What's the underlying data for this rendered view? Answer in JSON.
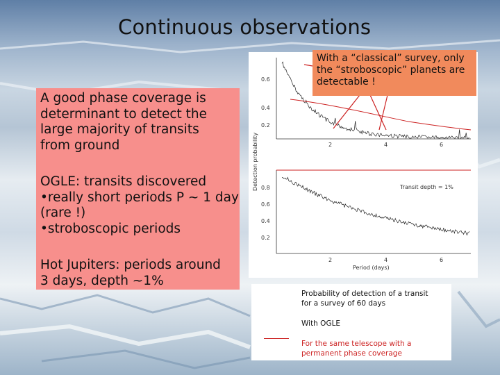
{
  "slide": {
    "title": "Continuous observations",
    "left_box": {
      "para1": [
        "A good phase coverage is",
        "determinant to detect the",
        "large majority of transits",
        "from ground"
      ],
      "para2": [
        "OGLE: transits discovered",
        "•really short periods P ~ 1 day",
        "(rare !)",
        "•stroboscopic periods"
      ],
      "para3": [
        "Hot Jupiters: periods around",
        "3 days, depth ~1%"
      ]
    },
    "callout": {
      "lines": [
        "With a “classical” survey, only",
        "the “stroboscopic” planets are",
        "detectable !"
      ]
    },
    "plot": {
      "ylabel": "Detection probability",
      "xlabel": "Period (days)",
      "inset_label": "Transit depth = 1%",
      "top_yticks": [
        "0.6",
        "0.4",
        "0.2"
      ],
      "bottom_yticks": [
        "0.8",
        "0.6",
        "0.4",
        "0.2"
      ],
      "xticks": [
        "2",
        "4",
        "6"
      ]
    },
    "legend": {
      "caption_lines": [
        "Probability of detection of a transit",
        "for a survey of 60 days"
      ],
      "ogle_label": "With OGLE",
      "permanent_lines": [
        "For the same telescope with a",
        "permanent phase coverage"
      ],
      "permanent_color": "#cc2222",
      "ogle_color": "#222222"
    }
  }
}
